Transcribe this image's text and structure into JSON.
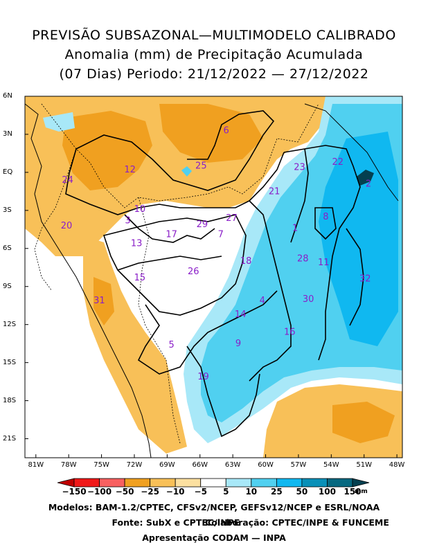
{
  "title": {
    "line1": "PREVISÃO SUBSAZONAL—MULTIMODELO CALIBRADO",
    "line2": "Anomalia (mm) de Precipitação Acumulada",
    "line3": "(07 Dias) Periodo: 21/12/2022 — 27/12/2022"
  },
  "axes": {
    "lat_labels": [
      "6N",
      "3N",
      "EQ",
      "3S",
      "6S",
      "9S",
      "12S",
      "15S",
      "18S",
      "21S"
    ],
    "lon_labels": [
      "81W",
      "78W",
      "75W",
      "72W",
      "69W",
      "66W",
      "63W",
      "60W",
      "57W",
      "54W",
      "51W",
      "48W"
    ]
  },
  "colorbar": {
    "labels": [
      "−150",
      "−100",
      "−50",
      "−25",
      "−10",
      "−5",
      "5",
      "10",
      "25",
      "50",
      "100",
      "150"
    ],
    "unit": "mm",
    "colors": [
      "#c00000",
      "#f01818",
      "#f86060",
      "#f0a020",
      "#f8c058",
      "#fce0a0",
      "#ffffff",
      "#a8e8f8",
      "#50d0f0",
      "#10b8f0",
      "#0890b8",
      "#066880",
      "#044050"
    ]
  },
  "basins": [
    {
      "id": "1",
      "lon": -57.3,
      "lat": -4.4
    },
    {
      "id": "2",
      "lon": -50.6,
      "lat": -0.9
    },
    {
      "id": "3",
      "lon": -72.6,
      "lat": -3.8
    },
    {
      "id": "4",
      "lon": -60.3,
      "lat": -10.1
    },
    {
      "id": "5",
      "lon": -68.6,
      "lat": -13.6
    },
    {
      "id": "6",
      "lon": -63.6,
      "lat": 3.3
    },
    {
      "id": "7",
      "lon": -64.1,
      "lat": -4.9
    },
    {
      "id": "8",
      "lon": -54.5,
      "lat": -3.5
    },
    {
      "id": "9",
      "lon": -62.5,
      "lat": -13.5
    },
    {
      "id": "10",
      "lon": -71.5,
      "lat": -2.9
    },
    {
      "id": "11",
      "lon": -54.7,
      "lat": -7.1
    },
    {
      "id": "12",
      "lon": -72.4,
      "lat": 0.2
    },
    {
      "id": "13",
      "lon": -71.8,
      "lat": -5.6
    },
    {
      "id": "14",
      "lon": -62.3,
      "lat": -11.2
    },
    {
      "id": "15",
      "lon": -71.5,
      "lat": -8.3
    },
    {
      "id": "16",
      "lon": -57.8,
      "lat": -12.6
    },
    {
      "id": "17",
      "lon": -68.6,
      "lat": -4.9
    },
    {
      "id": "18",
      "lon": -61.8,
      "lat": -7.0
    },
    {
      "id": "19",
      "lon": -65.7,
      "lat": -16.1
    },
    {
      "id": "20",
      "lon": -78.2,
      "lat": -4.2
    },
    {
      "id": "21",
      "lon": -59.2,
      "lat": -1.5
    },
    {
      "id": "22",
      "lon": -53.4,
      "lat": 0.8
    },
    {
      "id": "23",
      "lon": -56.9,
      "lat": 0.4
    },
    {
      "id": "24",
      "lon": -78.1,
      "lat": -0.6
    },
    {
      "id": "25",
      "lon": -65.9,
      "lat": 0.5
    },
    {
      "id": "26",
      "lon": -66.6,
      "lat": -7.8
    },
    {
      "id": "27",
      "lon": -63.1,
      "lat": -3.6
    },
    {
      "id": "28",
      "lon": -56.6,
      "lat": -6.8
    },
    {
      "id": "29",
      "lon": -65.8,
      "lat": -4.1
    },
    {
      "id": "30",
      "lon": -56.1,
      "lat": -10.0
    },
    {
      "id": "31",
      "lon": -75.2,
      "lat": -10.1
    },
    {
      "id": "32",
      "lon": -50.9,
      "lat": -8.4
    }
  ],
  "footer": {
    "line1": "Modelos: BAM-1.2/CPTEC, CFSv2/NCEP, GEFSv12/NCEP e ESRL/NOAA",
    "line2_left": "Fonte: SubX e CPTEC/INPE",
    "line2_right": "Colaboração: CPTEC/INPE & FUNCEME",
    "line3": "Apresentação CODAM — INPA"
  }
}
